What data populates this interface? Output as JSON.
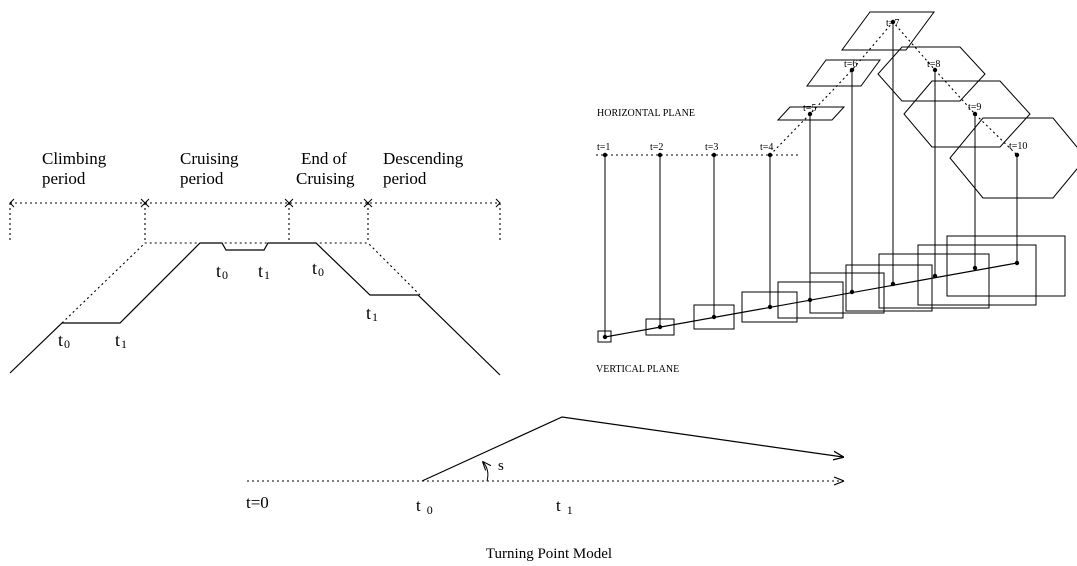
{
  "profile": {
    "phases": [
      {
        "line1": "Climbing",
        "line2": "period"
      },
      {
        "line1": "Cruising",
        "line2": "period"
      },
      {
        "line1": "End of",
        "line2": "Cruising"
      },
      {
        "line1": "Descending",
        "line2": "period"
      }
    ],
    "labels": {
      "climb_t0": "t",
      "climb_t0_sub": "0",
      "climb_t1": "t",
      "climb_t1_sub": "1",
      "cruise_t0": "t",
      "cruise_t0_sub": "0",
      "cruise_t1": "t",
      "cruise_t1_sub": "1",
      "end_t0": "t",
      "end_t0_sub": "0",
      "desc_t1": "t",
      "desc_t1_sub": "1"
    }
  },
  "planes": {
    "horizontal_label": "HORIZONTAL PLANE",
    "vertical_label": "VERTICAL PLANE",
    "time_labels": [
      "t=1",
      "t=2",
      "t=3",
      "t=4",
      "t=5",
      "t=6",
      "t=7",
      "t=8",
      "t=9",
      "t=10"
    ]
  },
  "turning": {
    "t_zero": "t=0",
    "t0": "t",
    "t0_sub": "0",
    "t1": "t",
    "t1_sub": "1",
    "angle": "s",
    "caption": "Turning Point Model"
  }
}
